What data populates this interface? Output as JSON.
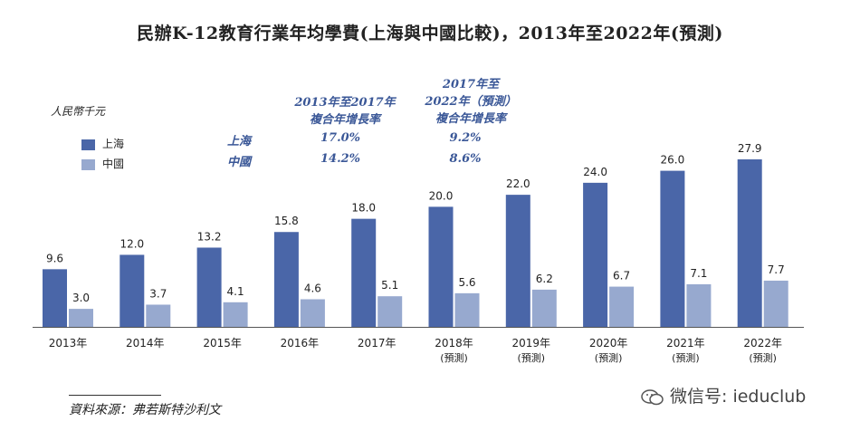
{
  "title": "民辦K-12教育行業年均學費(上海與中國比較)，2013年至2022年(預測)",
  "unit_label": "人民幣千元",
  "legend": [
    {
      "name": "上海",
      "color": "#4a66a8"
    },
    {
      "name": "中國",
      "color": "#97a9cf"
    }
  ],
  "cagr": {
    "period1_header": [
      "2013年至2017年",
      "複合年增長率"
    ],
    "period2_header": [
      "2017年至",
      "2022年（預測）",
      "複合年增長率"
    ],
    "rows": [
      {
        "region": "上海",
        "p1": "17.0%",
        "p2": "9.2%"
      },
      {
        "region": "中國",
        "p1": "14.2%",
        "p2": "8.6%"
      }
    ]
  },
  "chart_data": {
    "type": "bar",
    "title": "民辦K-12教育行業年均學費(上海與中國比較)，2013年至2022年(預測)",
    "ylabel": "人民幣千元",
    "categories": [
      "2013年",
      "2014年",
      "2015年",
      "2016年",
      "2017年",
      "2018年",
      "2019年",
      "2020年",
      "2021年",
      "2022年"
    ],
    "category_sublabels": [
      "",
      "",
      "",
      "",
      "",
      "(預測)",
      "(預測)",
      "(預測)",
      "(預測)",
      "(預測)"
    ],
    "series": [
      {
        "name": "上海",
        "values": [
          9.6,
          12.0,
          13.2,
          15.8,
          18.0,
          20.0,
          22.0,
          24.0,
          26.0,
          27.9
        ],
        "labels": [
          "9.6",
          "12.0",
          "13.2",
          "15.8",
          "18.0",
          "20.0",
          "22.0",
          "24.0",
          "26.0",
          "27.9"
        ]
      },
      {
        "name": "中國",
        "values": [
          3.0,
          3.7,
          4.1,
          4.6,
          5.1,
          5.6,
          6.2,
          6.7,
          7.1,
          7.7
        ],
        "labels": [
          "3.0",
          "3.7",
          "4.1",
          "4.6",
          "5.1",
          "5.6",
          "6.2",
          "6.7",
          "7.1",
          "7.7"
        ]
      }
    ],
    "ylim": [
      0,
      30
    ]
  },
  "source": "資料來源：弗若斯特沙利文",
  "watermark": "微信号: ieduclub"
}
